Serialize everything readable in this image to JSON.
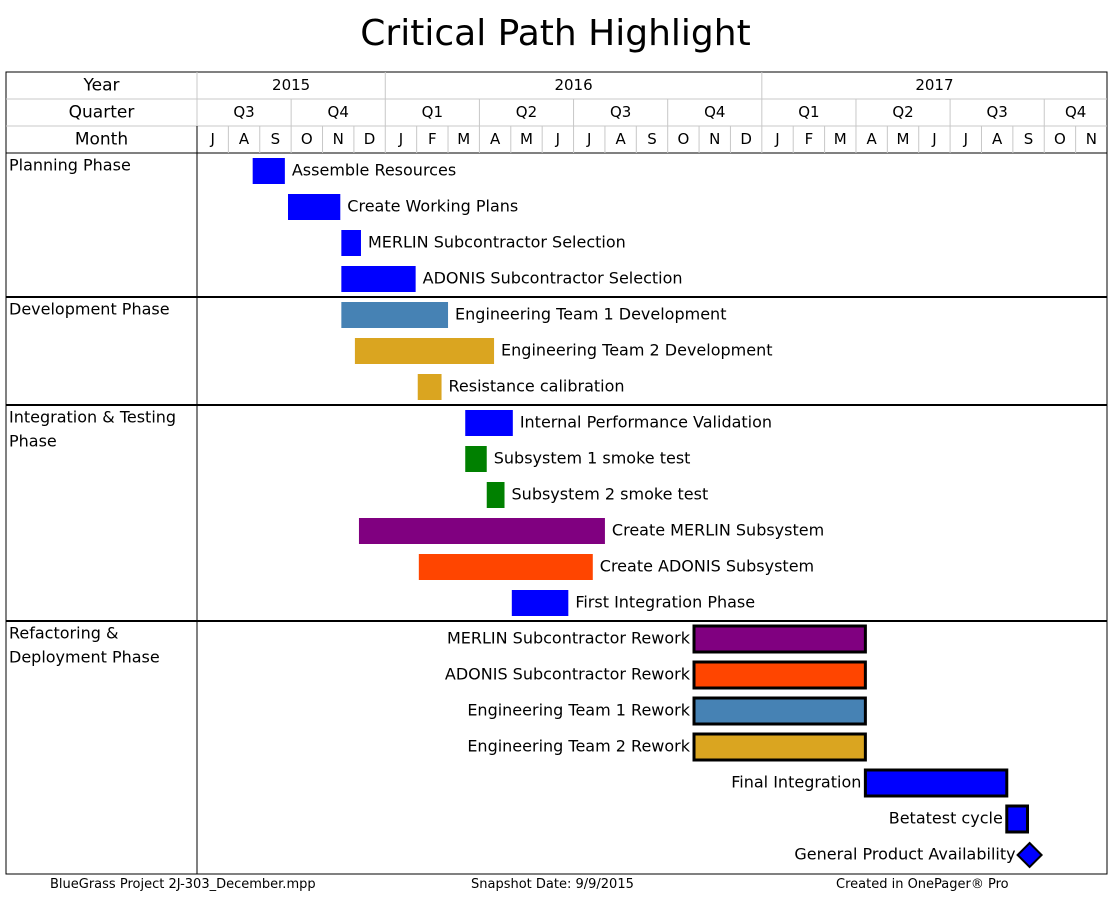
{
  "title": "Critical Path Highlight",
  "footer": {
    "left": "BlueGrass Project 2J-303_December.mpp",
    "center": "Snapshot Date: 9/9/2015",
    "right": "Created in OnePager® Pro"
  },
  "header": {
    "year_label": "Year",
    "quarter_label": "Quarter",
    "month_label": "Month",
    "years": [
      {
        "label": "2015",
        "start": "2015-07",
        "end": "2015-12"
      },
      {
        "label": "2016",
        "start": "2016-01",
        "end": "2016-12"
      },
      {
        "label": "2017",
        "start": "2017-01",
        "end": "2017-11"
      }
    ],
    "quarters": [
      {
        "label": "Q3",
        "start": "2015-07",
        "end": "2015-09"
      },
      {
        "label": "Q4",
        "start": "2015-10",
        "end": "2015-12"
      },
      {
        "label": "Q1",
        "start": "2016-01",
        "end": "2016-03"
      },
      {
        "label": "Q2",
        "start": "2016-04",
        "end": "2016-06"
      },
      {
        "label": "Q3",
        "start": "2016-07",
        "end": "2016-09"
      },
      {
        "label": "Q4",
        "start": "2016-10",
        "end": "2016-12"
      },
      {
        "label": "Q1",
        "start": "2017-01",
        "end": "2017-03"
      },
      {
        "label": "Q2",
        "start": "2017-04",
        "end": "2017-06"
      },
      {
        "label": "Q3",
        "start": "2017-07",
        "end": "2017-09"
      },
      {
        "label": "Q4",
        "start": "2017-10",
        "end": "2017-11"
      }
    ],
    "months": [
      "J",
      "A",
      "S",
      "O",
      "N",
      "D",
      "J",
      "F",
      "M",
      "A",
      "M",
      "J",
      "J",
      "A",
      "S",
      "O",
      "N",
      "D",
      "J",
      "F",
      "M",
      "A",
      "M",
      "J",
      "J",
      "A",
      "S",
      "O",
      "N"
    ]
  },
  "chart_data": {
    "type": "gantt",
    "x_axis": "time (months)",
    "xlim": [
      "2015-07-01",
      "2017-11-30"
    ],
    "phases": [
      {
        "name": "Planning Phase",
        "tasks": [
          {
            "name": "Assemble Resources",
            "start": "2015-08-25",
            "end": "2015-09-25",
            "color": "#0000FF",
            "critical": false,
            "label_side": "right"
          },
          {
            "name": "Create Working Plans",
            "start": "2015-09-28",
            "end": "2015-11-18",
            "color": "#0000FF",
            "critical": false,
            "label_side": "right"
          },
          {
            "name": "MERLIN Subcontractor Selection",
            "start": "2015-11-19",
            "end": "2015-12-08",
            "color": "#0000FF",
            "critical": false,
            "label_side": "right"
          },
          {
            "name": "ADONIS Subcontractor Selection",
            "start": "2015-11-19",
            "end": "2016-01-31",
            "color": "#0000FF",
            "critical": false,
            "label_side": "right"
          }
        ]
      },
      {
        "name": "Development Phase",
        "tasks": [
          {
            "name": "Engineering Team 1 Development",
            "start": "2015-11-19",
            "end": "2016-03-01",
            "color": "#4682B4",
            "critical": false,
            "label_side": "right"
          },
          {
            "name": "Engineering Team 2 Development",
            "start": "2015-12-02",
            "end": "2016-04-15",
            "color": "#DAA520",
            "critical": false,
            "label_side": "right"
          },
          {
            "name": "Resistance calibration",
            "start": "2016-02-02",
            "end": "2016-02-24",
            "color": "#DAA520",
            "critical": false,
            "label_side": "right"
          }
        ]
      },
      {
        "name": "Integration & Testing Phase",
        "tasks": [
          {
            "name": "Internal Performance Validation",
            "start": "2016-03-18",
            "end": "2016-05-03",
            "color": "#0000FF",
            "critical": false,
            "label_side": "right"
          },
          {
            "name": "Subsystem 1 smoke test",
            "start": "2016-03-18",
            "end": "2016-04-08",
            "color": "#008000",
            "critical": false,
            "label_side": "right"
          },
          {
            "name": "Subsystem 2 smoke test",
            "start": "2016-04-08",
            "end": "2016-04-25",
            "color": "#008000",
            "critical": false,
            "label_side": "right"
          },
          {
            "name": "Create MERLIN Subsystem",
            "start": "2015-12-06",
            "end": "2016-08-01",
            "color": "#800080",
            "critical": false,
            "label_side": "right"
          },
          {
            "name": "Create ADONIS Subsystem",
            "start": "2016-02-03",
            "end": "2016-07-20",
            "color": "#FF4500",
            "critical": false,
            "label_side": "right"
          },
          {
            "name": "First Integration Phase",
            "start": "2016-05-02",
            "end": "2016-06-26",
            "color": "#0000FF",
            "critical": false,
            "label_side": "right"
          }
        ]
      },
      {
        "name": "Refactoring & Deployment Phase",
        "tasks": [
          {
            "name": "MERLIN Subcontractor Rework",
            "start": "2016-10-27",
            "end": "2017-04-10",
            "color": "#800080",
            "critical": true,
            "label_side": "left"
          },
          {
            "name": "ADONIS Subcontractor Rework",
            "start": "2016-10-27",
            "end": "2017-04-10",
            "color": "#FF4500",
            "critical": true,
            "label_side": "left"
          },
          {
            "name": "Engineering Team 1 Rework",
            "start": "2016-10-27",
            "end": "2017-04-10",
            "color": "#4682B4",
            "critical": true,
            "label_side": "left"
          },
          {
            "name": "Engineering Team 2 Rework",
            "start": "2016-10-27",
            "end": "2017-04-10",
            "color": "#DAA520",
            "critical": true,
            "label_side": "left"
          },
          {
            "name": "Final Integration",
            "start": "2017-04-10",
            "end": "2017-08-26",
            "color": "#0000FF",
            "critical": true,
            "label_side": "left"
          },
          {
            "name": "Betatest cycle",
            "start": "2017-08-26",
            "end": "2017-09-15",
            "color": "#0000FF",
            "critical": true,
            "label_side": "left"
          },
          {
            "name": "General Product Availability",
            "date": "2017-09-17",
            "color": "#0000FF",
            "milestone": true,
            "critical": true,
            "label_side": "left"
          }
        ]
      }
    ]
  }
}
